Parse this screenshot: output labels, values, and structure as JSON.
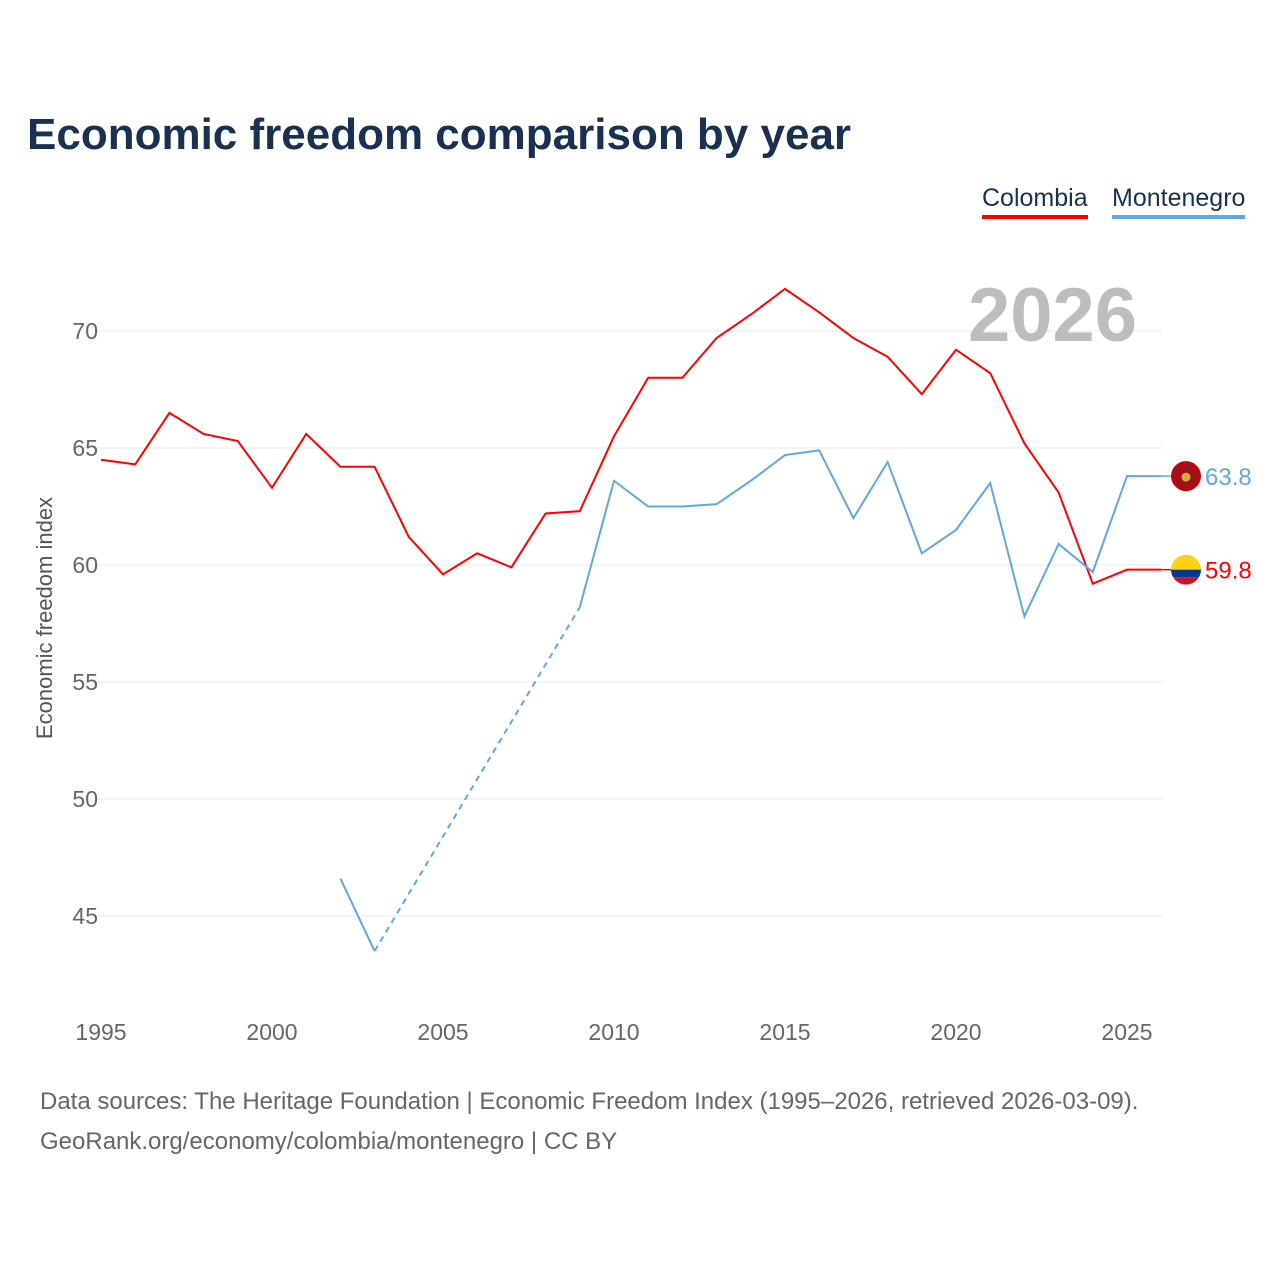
{
  "chart_data": {
    "type": "line",
    "title": "Economic freedom comparison by year",
    "ylabel": "Economic freedom index",
    "xlabel": "",
    "xlim": [
      1995,
      2026
    ],
    "ylim": [
      42,
      73
    ],
    "yticks": [
      45,
      50,
      55,
      60,
      65,
      70
    ],
    "xticks": [
      1995,
      2000,
      2005,
      2010,
      2015,
      2020,
      2025
    ],
    "year_label": "2026",
    "legend": [
      "Colombia",
      "Montenegro"
    ],
    "series": [
      {
        "name": "Colombia",
        "color": "#ff0000",
        "end_label": "59.8",
        "x": [
          1995,
          1996,
          1997,
          1998,
          1999,
          2000,
          2001,
          2002,
          2003,
          2004,
          2005,
          2006,
          2007,
          2008,
          2009,
          2010,
          2011,
          2012,
          2013,
          2014,
          2015,
          2016,
          2017,
          2018,
          2019,
          2020,
          2021,
          2022,
          2023,
          2024,
          2025,
          2026
        ],
        "y": [
          64.5,
          64.3,
          66.5,
          65.6,
          65.3,
          63.3,
          65.6,
          64.2,
          64.2,
          61.2,
          59.6,
          60.5,
          59.9,
          62.2,
          62.3,
          65.5,
          68.0,
          68.0,
          69.7,
          70.7,
          71.8,
          70.8,
          69.7,
          68.9,
          67.3,
          69.2,
          68.2,
          65.2,
          63.1,
          59.2,
          59.8,
          59.8
        ]
      },
      {
        "name": "Montenegro",
        "color": "#5fa8e8",
        "end_label": "63.8",
        "x": [
          2002,
          2003,
          2004,
          2005,
          2006,
          2007,
          2008,
          2009,
          2010,
          2011,
          2012,
          2013,
          2014,
          2015,
          2016,
          2017,
          2018,
          2019,
          2020,
          2021,
          2022,
          2023,
          2024,
          2025,
          2026
        ],
        "y": [
          46.6,
          43.5,
          null,
          null,
          null,
          null,
          null,
          58.2,
          63.6,
          62.5,
          62.5,
          62.6,
          63.6,
          64.7,
          64.9,
          62.0,
          64.4,
          60.5,
          61.5,
          63.5,
          57.8,
          60.9,
          59.7,
          63.8,
          63.8
        ]
      }
    ]
  },
  "footer": {
    "line1": "Data sources: The Heritage Foundation | Economic Freedom Index (1995–2026, retrieved 2026-03-09).",
    "line2": "GeoRank.org/economy/colombia/montenegro | CC BY"
  }
}
